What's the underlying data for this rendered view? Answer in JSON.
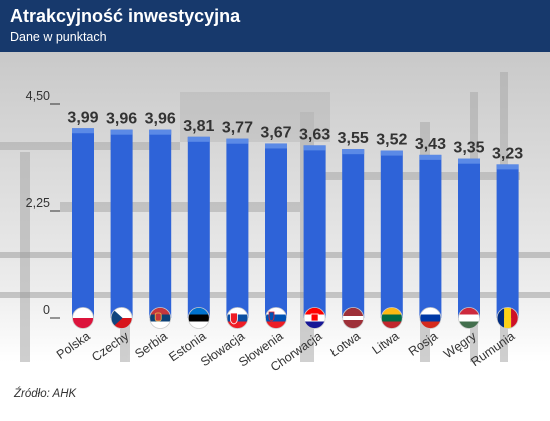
{
  "header": {
    "title": "Atrakcyjność inwestycyjna",
    "subtitle": "Dane w punktach"
  },
  "source": "Źródło: AHK",
  "colors": {
    "header_bg": "#17396c",
    "bar": "#2e63d8",
    "bar_cap": "#5b8ae6",
    "value_text": "#333333"
  },
  "chart_data": {
    "type": "bar",
    "title": "Atrakcyjność inwestycyjna",
    "subtitle": "Dane w punktach",
    "categories": [
      "Polska",
      "Czechy",
      "Serbia",
      "Estonia",
      "Słowacja",
      "Słowenia",
      "Chorwacja",
      "Łotwa",
      "Litwa",
      "Rosja",
      "Węgry",
      "Rumunia"
    ],
    "values": [
      3.99,
      3.96,
      3.96,
      3.81,
      3.77,
      3.67,
      3.63,
      3.55,
      3.52,
      3.43,
      3.35,
      3.23
    ],
    "value_labels": [
      "3,99",
      "3,96",
      "3,96",
      "3,81",
      "3,77",
      "3,67",
      "3,63",
      "3,55",
      "3,52",
      "3,43",
      "3,35",
      "3,23"
    ],
    "yticks": [
      0,
      2.25,
      4.5
    ],
    "ytick_labels": [
      "0",
      "2,25",
      "4,50"
    ],
    "ylim": [
      0,
      4.5
    ],
    "xlabel": "",
    "ylabel": "",
    "grid": false,
    "legend": false,
    "flags": [
      "flag-poland-icon",
      "flag-czech-icon",
      "flag-serbia-icon",
      "flag-estonia-icon",
      "flag-slovakia-icon",
      "flag-slovenia-icon",
      "flag-croatia-icon",
      "flag-latvia-icon",
      "flag-lithuania-icon",
      "flag-russia-icon",
      "flag-hungary-icon",
      "flag-romania-icon"
    ]
  }
}
